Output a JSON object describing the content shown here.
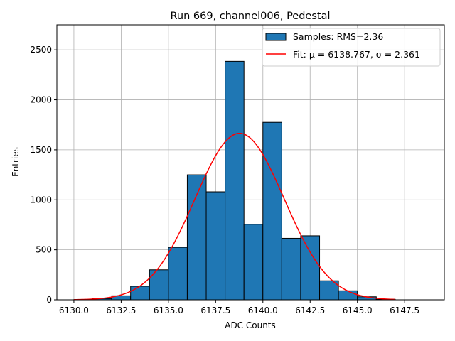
{
  "chart_data": {
    "type": "bar",
    "title": "Run 669, channel006, Pedestal",
    "xlabel": "ADC Counts",
    "ylabel": "Entries",
    "xlim": [
      6129.1,
      6149.6
    ],
    "ylim": [
      0,
      2750
    ],
    "grid": true,
    "legend_position": "top-right",
    "x_ticks": [
      6130.0,
      6132.5,
      6135.0,
      6137.5,
      6140.0,
      6142.5,
      6145.0,
      6147.5
    ],
    "x_tick_labels": [
      "6130.0",
      "6132.5",
      "6135.0",
      "6137.5",
      "6140.0",
      "6142.5",
      "6145.0",
      "6147.5"
    ],
    "y_ticks": [
      0,
      500,
      1000,
      1500,
      2000,
      2500
    ],
    "y_tick_labels": [
      "0",
      "500",
      "1000",
      "1500",
      "2000",
      "2500"
    ],
    "bins": [
      {
        "x0": 6130,
        "x1": 6131,
        "value": 2
      },
      {
        "x0": 6131,
        "x1": 6132,
        "value": 12
      },
      {
        "x0": 6132,
        "x1": 6133,
        "value": 40
      },
      {
        "x0": 6133,
        "x1": 6134,
        "value": 135
      },
      {
        "x0": 6134,
        "x1": 6135,
        "value": 300
      },
      {
        "x0": 6135,
        "x1": 6136,
        "value": 525
      },
      {
        "x0": 6136,
        "x1": 6137,
        "value": 1250
      },
      {
        "x0": 6137,
        "x1": 6138,
        "value": 1080
      },
      {
        "x0": 6138,
        "x1": 6139,
        "value": 2385
      },
      {
        "x0": 6139,
        "x1": 6140,
        "value": 755
      },
      {
        "x0": 6140,
        "x1": 6141,
        "value": 1775
      },
      {
        "x0": 6141,
        "x1": 6142,
        "value": 615
      },
      {
        "x0": 6142,
        "x1": 6143,
        "value": 640
      },
      {
        "x0": 6143,
        "x1": 6144,
        "value": 190
      },
      {
        "x0": 6144,
        "x1": 6145,
        "value": 90
      },
      {
        "x0": 6145,
        "x1": 6146,
        "value": 30
      },
      {
        "x0": 6146,
        "x1": 6147,
        "value": 5
      }
    ],
    "fit": {
      "mu": 6138.767,
      "sigma": 2.361,
      "amplitude": 1665,
      "x_range": [
        6130,
        6147
      ]
    },
    "series": [
      {
        "name": "Samples: RMS=2.36",
        "kind": "histogram",
        "color": "#1f77b4"
      },
      {
        "name": "Fit: μ = 6138.767, σ = 2.361",
        "kind": "line",
        "color": "#ff0000"
      }
    ]
  }
}
